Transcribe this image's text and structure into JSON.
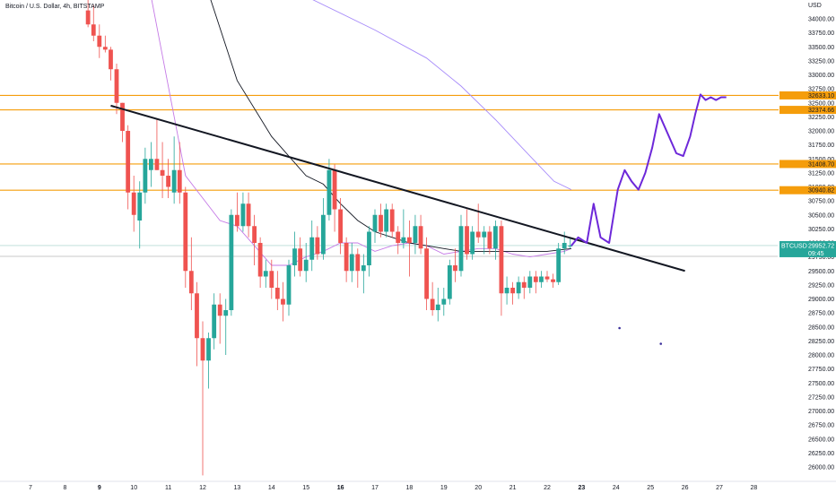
{
  "header": {
    "symbol_title": "Bitcoin / U.S. Dollar, 4h, BITSTAMP",
    "currency": "USD"
  },
  "chart_data": {
    "type": "candlestick",
    "title": "Bitcoin / U.S. Dollar, 4h, BITSTAMP",
    "ylabel": "USD",
    "ylim": [
      25750,
      34400
    ],
    "x_tick_labels": [
      {
        "label": "7",
        "day": 7
      },
      {
        "label": "8",
        "day": 8
      },
      {
        "label": "9",
        "day": 9,
        "bold": true
      },
      {
        "label": "10",
        "day": 10
      },
      {
        "label": "11",
        "day": 11
      },
      {
        "label": "12",
        "day": 12
      },
      {
        "label": "13",
        "day": 13
      },
      {
        "label": "14",
        "day": 14
      },
      {
        "label": "15",
        "day": 15
      },
      {
        "label": "16",
        "day": 16,
        "bold": true
      },
      {
        "label": "17",
        "day": 17
      },
      {
        "label": "18",
        "day": 18
      },
      {
        "label": "19",
        "day": 19
      },
      {
        "label": "20",
        "day": 20
      },
      {
        "label": "21",
        "day": 21
      },
      {
        "label": "22",
        "day": 22
      },
      {
        "label": "23",
        "day": 23,
        "bold": true
      },
      {
        "label": "24",
        "day": 24
      },
      {
        "label": "25",
        "day": 25
      },
      {
        "label": "26",
        "day": 26
      },
      {
        "label": "27",
        "day": 27
      },
      {
        "label": "28",
        "day": 28
      }
    ],
    "y_ticks": [
      "34000.00",
      "33750.00",
      "33500.00",
      "33250.00",
      "33000.00",
      "32750.00",
      "32500.00",
      "32250.00",
      "32000.00",
      "31750.00",
      "31500.00",
      "31250.00",
      "31000.00",
      "30750.00",
      "30500.00",
      "30250.00",
      "30000.00",
      "29750.00",
      "29500.00",
      "29250.00",
      "29000.00",
      "28750.00",
      "28500.00",
      "28250.00",
      "28000.00",
      "27750.00",
      "27500.00",
      "27250.00",
      "27000.00",
      "26750.00",
      "26500.00",
      "26250.00",
      "26000.00"
    ],
    "horizontal_levels": [
      {
        "value": 32633.1,
        "label": "32633.10",
        "color": "#f59d0b"
      },
      {
        "value": 32374.66,
        "label": "32374.66",
        "color": "#f59d0b"
      },
      {
        "value": 31408.7,
        "label": "31408.70",
        "color": "#f59d0b"
      },
      {
        "value": 30940.82,
        "label": "30940.82",
        "color": "#f59d0b"
      }
    ],
    "current_price": {
      "symbol": "BTCUSD",
      "value": 29952.72,
      "label": "29952.72",
      "countdown": "09:45",
      "color": "#26a69a"
    },
    "candles": [
      {
        "day": 8.67,
        "open": 34150,
        "high": 34400,
        "low": 33850,
        "close": 33900
      },
      {
        "day": 8.83,
        "open": 33900,
        "high": 34250,
        "low": 33600,
        "close": 33700
      },
      {
        "day": 9.0,
        "open": 33700,
        "high": 33900,
        "low": 33300,
        "close": 33500
      },
      {
        "day": 9.17,
        "open": 33500,
        "high": 33700,
        "low": 33400,
        "close": 33450
      },
      {
        "day": 9.33,
        "open": 33450,
        "high": 33500,
        "low": 32900,
        "close": 33100
      },
      {
        "day": 9.5,
        "open": 33100,
        "high": 33200,
        "low": 32300,
        "close": 32500
      },
      {
        "day": 9.67,
        "open": 32500,
        "high": 32500,
        "low": 31800,
        "close": 32000
      },
      {
        "day": 9.83,
        "open": 32000,
        "high": 32100,
        "low": 30600,
        "close": 30900
      },
      {
        "day": 10.0,
        "open": 30900,
        "high": 31200,
        "low": 30200,
        "close": 30500
      },
      {
        "day": 10.17,
        "open": 30400,
        "high": 31100,
        "low": 29900,
        "close": 30900
      },
      {
        "day": 10.33,
        "open": 30900,
        "high": 31700,
        "low": 30700,
        "close": 31500
      },
      {
        "day": 10.5,
        "open": 31300,
        "high": 31800,
        "low": 31000,
        "close": 31500
      },
      {
        "day": 10.67,
        "open": 31500,
        "high": 32200,
        "low": 31300,
        "close": 31300
      },
      {
        "day": 10.83,
        "open": 31300,
        "high": 31800,
        "low": 30800,
        "close": 31200
      },
      {
        "day": 11.0,
        "open": 31200,
        "high": 31500,
        "low": 30800,
        "close": 31000
      },
      {
        "day": 11.17,
        "open": 30900,
        "high": 31900,
        "low": 30700,
        "close": 31300
      },
      {
        "day": 11.33,
        "open": 31300,
        "high": 31800,
        "low": 30700,
        "close": 30900
      },
      {
        "day": 11.5,
        "open": 30900,
        "high": 31000,
        "low": 29200,
        "close": 29500
      },
      {
        "day": 11.67,
        "open": 29500,
        "high": 30100,
        "low": 28800,
        "close": 29100
      },
      {
        "day": 11.83,
        "open": 29100,
        "high": 29300,
        "low": 27800,
        "close": 28300
      },
      {
        "day": 12.0,
        "open": 28300,
        "high": 28600,
        "low": 25850,
        "close": 27900
      },
      {
        "day": 12.17,
        "open": 27900,
        "high": 28400,
        "low": 27400,
        "close": 28300
      },
      {
        "day": 12.33,
        "open": 28300,
        "high": 29100,
        "low": 28100,
        "close": 28900
      },
      {
        "day": 12.5,
        "open": 28900,
        "high": 29100,
        "low": 28200,
        "close": 28700
      },
      {
        "day": 12.67,
        "open": 28700,
        "high": 29000,
        "low": 28000,
        "close": 28800
      },
      {
        "day": 12.83,
        "open": 28800,
        "high": 30600,
        "low": 28700,
        "close": 30500
      },
      {
        "day": 13.0,
        "open": 30500,
        "high": 30900,
        "low": 30200,
        "close": 30300
      },
      {
        "day": 13.17,
        "open": 30300,
        "high": 30900,
        "low": 30200,
        "close": 30700
      },
      {
        "day": 13.33,
        "open": 30700,
        "high": 30900,
        "low": 30100,
        "close": 30300
      },
      {
        "day": 13.5,
        "open": 30300,
        "high": 30500,
        "low": 29600,
        "close": 30000
      },
      {
        "day": 13.67,
        "open": 30000,
        "high": 30100,
        "low": 29200,
        "close": 29400
      },
      {
        "day": 13.83,
        "open": 29400,
        "high": 29700,
        "low": 29200,
        "close": 29500
      },
      {
        "day": 14.0,
        "open": 29500,
        "high": 29700,
        "low": 29000,
        "close": 29200
      },
      {
        "day": 14.17,
        "open": 29200,
        "high": 29500,
        "low": 28800,
        "close": 29000
      },
      {
        "day": 14.33,
        "open": 29000,
        "high": 29300,
        "low": 28600,
        "close": 28900
      },
      {
        "day": 14.5,
        "open": 28900,
        "high": 29700,
        "low": 28700,
        "close": 29600
      },
      {
        "day": 14.67,
        "open": 29600,
        "high": 30200,
        "low": 29400,
        "close": 29900
      },
      {
        "day": 14.83,
        "open": 29900,
        "high": 30100,
        "low": 29400,
        "close": 29500
      },
      {
        "day": 15.0,
        "open": 29500,
        "high": 30000,
        "low": 29300,
        "close": 29700
      },
      {
        "day": 15.17,
        "open": 29700,
        "high": 30400,
        "low": 29500,
        "close": 30100
      },
      {
        "day": 15.33,
        "open": 30100,
        "high": 30300,
        "low": 29700,
        "close": 29800
      },
      {
        "day": 15.5,
        "open": 29800,
        "high": 30800,
        "low": 29700,
        "close": 30500
      },
      {
        "day": 15.67,
        "open": 30500,
        "high": 31500,
        "low": 30400,
        "close": 31300
      },
      {
        "day": 15.83,
        "open": 31300,
        "high": 31400,
        "low": 30200,
        "close": 30600
      },
      {
        "day": 16.0,
        "open": 30600,
        "high": 30800,
        "low": 29800,
        "close": 30000
      },
      {
        "day": 16.17,
        "open": 30000,
        "high": 30100,
        "low": 29300,
        "close": 29500
      },
      {
        "day": 16.33,
        "open": 29500,
        "high": 30000,
        "low": 29300,
        "close": 29800
      },
      {
        "day": 16.5,
        "open": 29800,
        "high": 29900,
        "low": 29200,
        "close": 29500
      },
      {
        "day": 16.67,
        "open": 29500,
        "high": 29800,
        "low": 29100,
        "close": 29600
      },
      {
        "day": 16.83,
        "open": 29600,
        "high": 30300,
        "low": 29400,
        "close": 30200
      },
      {
        "day": 17.0,
        "open": 30200,
        "high": 30600,
        "low": 30000,
        "close": 30500
      },
      {
        "day": 17.17,
        "open": 30500,
        "high": 30700,
        "low": 30100,
        "close": 30200
      },
      {
        "day": 17.33,
        "open": 30200,
        "high": 30700,
        "low": 30100,
        "close": 30600
      },
      {
        "day": 17.5,
        "open": 30600,
        "high": 30700,
        "low": 30100,
        "close": 30200
      },
      {
        "day": 17.67,
        "open": 30200,
        "high": 30300,
        "low": 29800,
        "close": 30000
      },
      {
        "day": 17.83,
        "open": 30000,
        "high": 30600,
        "low": 29900,
        "close": 30100
      },
      {
        "day": 18.0,
        "open": 30100,
        "high": 30400,
        "low": 29400,
        "close": 30000
      },
      {
        "day": 18.17,
        "open": 30000,
        "high": 30500,
        "low": 29800,
        "close": 30300
      },
      {
        "day": 18.33,
        "open": 30300,
        "high": 30500,
        "low": 29800,
        "close": 29900
      },
      {
        "day": 18.5,
        "open": 29900,
        "high": 30100,
        "low": 28800,
        "close": 29000
      },
      {
        "day": 18.67,
        "open": 29000,
        "high": 29300,
        "low": 28700,
        "close": 28800
      },
      {
        "day": 18.83,
        "open": 28800,
        "high": 29200,
        "low": 28600,
        "close": 28900
      },
      {
        "day": 19.0,
        "open": 28900,
        "high": 29200,
        "low": 28700,
        "close": 29000
      },
      {
        "day": 19.17,
        "open": 29000,
        "high": 29700,
        "low": 28900,
        "close": 29600
      },
      {
        "day": 19.33,
        "open": 29600,
        "high": 29900,
        "low": 29300,
        "close": 29500
      },
      {
        "day": 19.5,
        "open": 29500,
        "high": 30500,
        "low": 29400,
        "close": 30300
      },
      {
        "day": 19.67,
        "open": 30300,
        "high": 30600,
        "low": 29700,
        "close": 29800
      },
      {
        "day": 19.83,
        "open": 29800,
        "high": 30300,
        "low": 29700,
        "close": 30200
      },
      {
        "day": 20.0,
        "open": 30200,
        "high": 30700,
        "low": 30000,
        "close": 30100
      },
      {
        "day": 20.17,
        "open": 30100,
        "high": 30300,
        "low": 29800,
        "close": 30200
      },
      {
        "day": 20.33,
        "open": 30200,
        "high": 30300,
        "low": 29800,
        "close": 29900
      },
      {
        "day": 20.5,
        "open": 29900,
        "high": 30400,
        "low": 29700,
        "close": 30300
      },
      {
        "day": 20.67,
        "open": 30300,
        "high": 30400,
        "low": 28700,
        "close": 29100
      },
      {
        "day": 20.83,
        "open": 29100,
        "high": 29400,
        "low": 28900,
        "close": 29200
      },
      {
        "day": 21.0,
        "open": 29200,
        "high": 29300,
        "low": 28900,
        "close": 29100
      },
      {
        "day": 21.17,
        "open": 29100,
        "high": 29400,
        "low": 29000,
        "close": 29300
      },
      {
        "day": 21.33,
        "open": 29300,
        "high": 29400,
        "low": 29000,
        "close": 29200
      },
      {
        "day": 21.5,
        "open": 29200,
        "high": 29500,
        "low": 29100,
        "close": 29400
      },
      {
        "day": 21.67,
        "open": 29400,
        "high": 29500,
        "low": 29100,
        "close": 29300
      },
      {
        "day": 21.83,
        "open": 29300,
        "high": 29500,
        "low": 29200,
        "close": 29400
      },
      {
        "day": 22.0,
        "open": 29400,
        "high": 29500,
        "low": 29300,
        "close": 29350
      },
      {
        "day": 22.17,
        "open": 29350,
        "high": 29450,
        "low": 29200,
        "close": 29300
      },
      {
        "day": 22.33,
        "open": 29300,
        "high": 30000,
        "low": 29250,
        "close": 29900
      },
      {
        "day": 22.5,
        "open": 29900,
        "high": 30200,
        "low": 29800,
        "close": 30000
      },
      {
        "day": 22.67,
        "open": 29950,
        "high": 30100,
        "low": 29900,
        "close": 29952.72
      }
    ],
    "series": [
      {
        "color": "#c57ae6",
        "points": [
          [
            10.5,
            34400
          ],
          [
            11.5,
            31200
          ],
          [
            12.0,
            30800
          ],
          [
            12.5,
            30400
          ],
          [
            13.0,
            30300
          ],
          [
            13.5,
            29950
          ],
          [
            14.0,
            29600
          ],
          [
            14.5,
            29600
          ],
          [
            15.0,
            29750
          ],
          [
            15.5,
            29850
          ],
          [
            16.0,
            30000
          ],
          [
            16.5,
            30000
          ],
          [
            17.0,
            29850
          ],
          [
            17.5,
            29950
          ],
          [
            18.0,
            30000
          ],
          [
            18.5,
            29950
          ],
          [
            19.0,
            29800
          ],
          [
            19.5,
            29850
          ],
          [
            20.0,
            29900
          ],
          [
            20.5,
            29900
          ],
          [
            21.0,
            29800
          ],
          [
            21.5,
            29750
          ],
          [
            22.0,
            29800
          ],
          [
            22.5,
            29850
          ],
          [
            22.7,
            29900
          ]
        ]
      },
      {
        "color": "#131722",
        "points": [
          [
            12.2,
            34400
          ],
          [
            13.0,
            32900
          ],
          [
            14.0,
            31900
          ],
          [
            15.0,
            31200
          ],
          [
            15.5,
            31050
          ],
          [
            16.0,
            30700
          ],
          [
            16.5,
            30400
          ],
          [
            17.0,
            30200
          ],
          [
            17.5,
            30100
          ],
          [
            18.0,
            30000
          ],
          [
            18.5,
            29950
          ],
          [
            19.0,
            29900
          ],
          [
            19.5,
            29850
          ],
          [
            20.0,
            29850
          ],
          [
            20.5,
            29850
          ],
          [
            21.0,
            29850
          ],
          [
            21.5,
            29850
          ],
          [
            22.0,
            29850
          ],
          [
            22.7,
            29900
          ]
        ]
      },
      {
        "color": "#a78bfa",
        "points": [
          [
            15.0,
            34400
          ],
          [
            17.0,
            33800
          ],
          [
            18.5,
            33300
          ],
          [
            19.5,
            32800
          ],
          [
            20.5,
            32200
          ],
          [
            21.5,
            31550
          ],
          [
            22.2,
            31100
          ],
          [
            22.7,
            30950
          ]
        ]
      }
    ],
    "annotations": {
      "trendline": {
        "color": "#131722",
        "points": [
          [
            9.33,
            32450
          ],
          [
            26.0,
            29500
          ]
        ]
      },
      "projection": {
        "color": "#6d28d9",
        "points": [
          [
            22.7,
            29950
          ],
          [
            22.9,
            30100
          ],
          [
            23.15,
            30000
          ],
          [
            23.35,
            30700
          ],
          [
            23.55,
            30100
          ],
          [
            23.8,
            30000
          ],
          [
            24.05,
            30950
          ],
          [
            24.25,
            31300
          ],
          [
            24.45,
            31100
          ],
          [
            24.65,
            30950
          ],
          [
            24.85,
            31250
          ],
          [
            25.05,
            31700
          ],
          [
            25.25,
            32300
          ],
          [
            25.5,
            31950
          ],
          [
            25.75,
            31600
          ],
          [
            25.95,
            31550
          ],
          [
            26.15,
            31900
          ],
          [
            26.3,
            32300
          ],
          [
            26.45,
            32650
          ],
          [
            26.6,
            32550
          ],
          [
            26.75,
            32600
          ],
          [
            26.9,
            32550
          ],
          [
            27.05,
            32600
          ],
          [
            27.2,
            32600
          ]
        ]
      },
      "dots": [
        {
          "day": 24.1,
          "value": 28480,
          "color": "#3b2f9b"
        },
        {
          "day": 25.3,
          "value": 28200,
          "color": "#3b2f9b"
        }
      ]
    },
    "grid": false
  }
}
